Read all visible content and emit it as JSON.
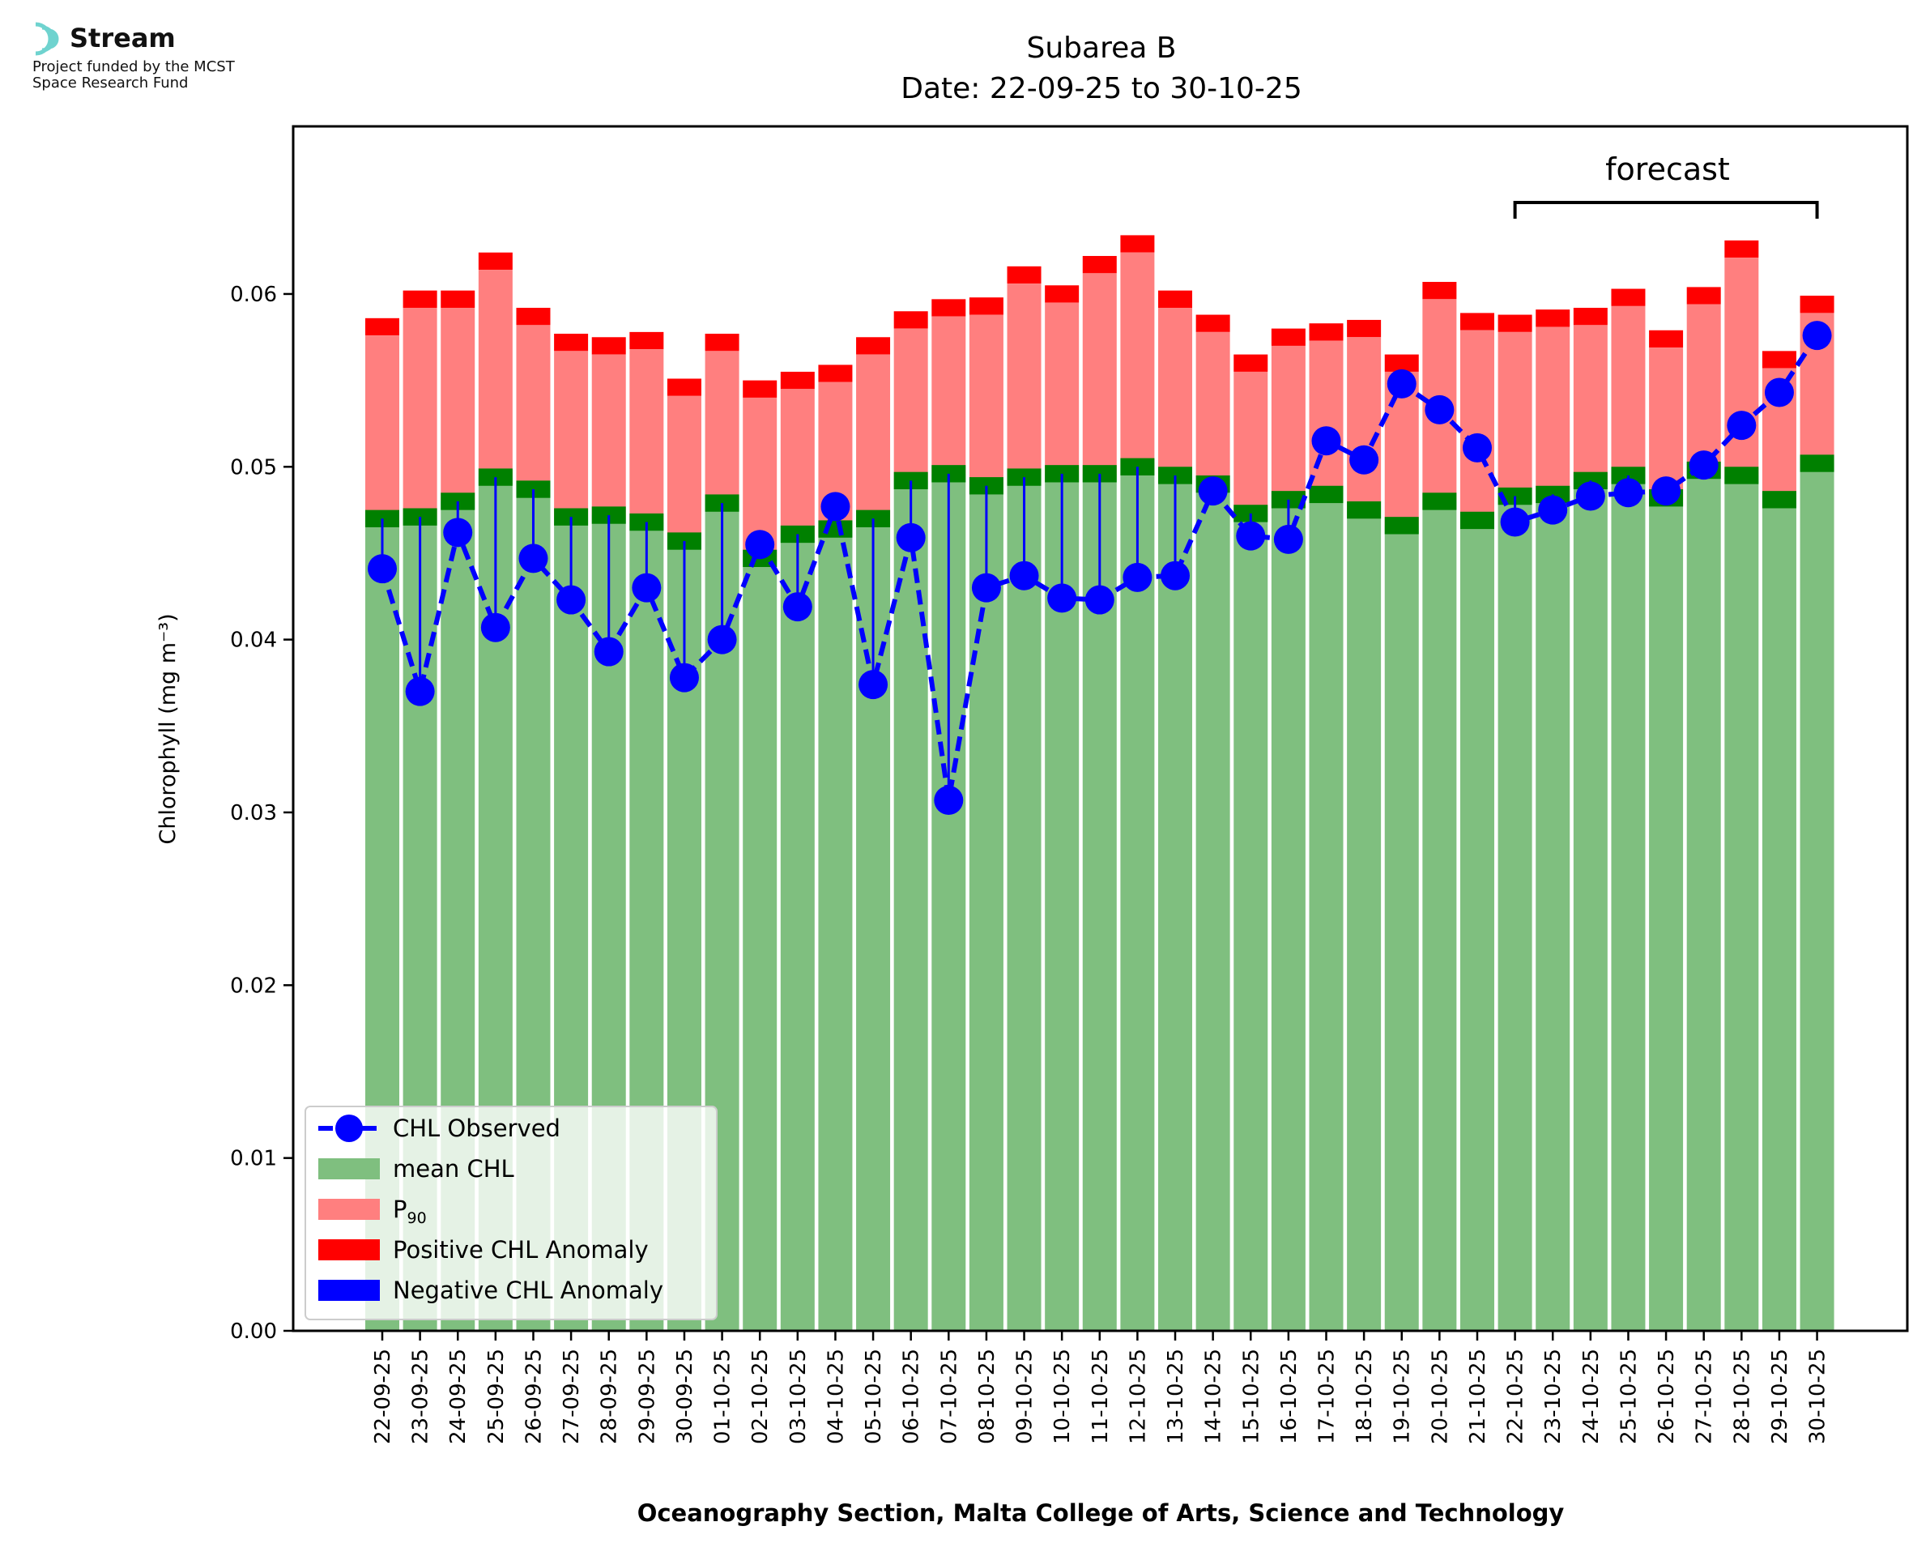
{
  "logo": {
    "name": "Stream",
    "line1": "Project funded by the MCST",
    "line2": "Space Research Fund",
    "color": "#6fd3cf"
  },
  "chart_data": {
    "type": "bar",
    "title": "Subarea B",
    "subtitle": "Date: 22-09-25 to 30-10-25",
    "xlabel": "Oceanography Section, Malta College of Arts, Science and Technology",
    "ylabel": "Chlorophyll (mg m⁻³)",
    "ylim": [
      0,
      0.0697
    ],
    "yticks": [
      0.0,
      0.01,
      0.02,
      0.03,
      0.04,
      0.05,
      0.06
    ],
    "ytick_labels": [
      "0.00",
      "0.01",
      "0.02",
      "0.03",
      "0.04",
      "0.05",
      "0.06"
    ],
    "grid": false,
    "legend_position": "lower-left",
    "categories": [
      "22-09-25",
      "23-09-25",
      "24-09-25",
      "25-09-25",
      "26-09-25",
      "27-09-25",
      "28-09-25",
      "29-09-25",
      "30-09-25",
      "01-10-25",
      "02-10-25",
      "03-10-25",
      "04-10-25",
      "05-10-25",
      "06-10-25",
      "07-10-25",
      "08-10-25",
      "09-10-25",
      "10-10-25",
      "11-10-25",
      "12-10-25",
      "13-10-25",
      "14-10-25",
      "15-10-25",
      "16-10-25",
      "17-10-25",
      "18-10-25",
      "19-10-25",
      "20-10-25",
      "21-10-25",
      "22-10-25",
      "23-10-25",
      "24-10-25",
      "25-10-25",
      "26-10-25",
      "27-10-25",
      "28-10-25",
      "29-10-25",
      "30-10-25"
    ],
    "series": [
      {
        "name": "mean CHL",
        "color": "#7fbf7f",
        "band_color": "#008000",
        "values": [
          0.047,
          0.0471,
          0.048,
          0.0494,
          0.0487,
          0.0471,
          0.0472,
          0.0468,
          0.0457,
          0.0479,
          0.0447,
          0.0461,
          0.0464,
          0.047,
          0.0492,
          0.0496,
          0.0489,
          0.0494,
          0.0496,
          0.0496,
          0.05,
          0.0495,
          0.049,
          0.0473,
          0.0481,
          0.0484,
          0.0475,
          0.0466,
          0.048,
          0.0469,
          0.0483,
          0.0484,
          0.0492,
          0.0495,
          0.0482,
          0.0498,
          0.0495,
          0.0481,
          0.0502
        ]
      },
      {
        "name": "P₉₀",
        "color": "#ff7f7f",
        "band_color": "#ff0000",
        "values": [
          0.0581,
          0.0597,
          0.0597,
          0.0619,
          0.0587,
          0.0572,
          0.057,
          0.0573,
          0.0546,
          0.0572,
          0.0545,
          0.055,
          0.0554,
          0.057,
          0.0585,
          0.0592,
          0.0593,
          0.0611,
          0.06,
          0.0617,
          0.0629,
          0.0597,
          0.0583,
          0.056,
          0.0575,
          0.0578,
          0.058,
          0.056,
          0.0602,
          0.0584,
          0.0583,
          0.0586,
          0.0587,
          0.0598,
          0.0574,
          0.0599,
          0.0626,
          0.0562,
          0.0594
        ]
      },
      {
        "name": "CHL Observed",
        "color": "#0000ff",
        "line_style": "dashed",
        "values": [
          0.0441,
          0.037,
          0.0462,
          0.0407,
          0.0447,
          0.0423,
          0.0393,
          0.043,
          0.0378,
          0.04,
          0.0455,
          0.0419,
          0.0477,
          0.0374,
          0.0459,
          0.0307,
          0.043,
          0.0437,
          0.0424,
          0.0423,
          0.0436,
          0.0437,
          0.0486,
          0.046,
          0.0458,
          0.0515,
          0.0504,
          0.0548,
          0.0533,
          0.0511,
          0.0468,
          0.0475,
          0.0483,
          0.0485,
          0.0486,
          0.0501,
          0.0524,
          0.0543,
          0.0576
        ]
      }
    ],
    "legend": [
      {
        "label": "CHL Observed",
        "kind": "line-marker",
        "color": "#0000ff"
      },
      {
        "label": "mean CHL",
        "kind": "patch",
        "color": "#7fbf7f"
      },
      {
        "label": "P",
        "sub": "90",
        "kind": "patch",
        "color": "#ff7f7f"
      },
      {
        "label": "Positive CHL Anomaly",
        "kind": "patch",
        "color": "#ff0000"
      },
      {
        "label": "Negative CHL Anomaly",
        "kind": "patch",
        "color": "#0000ff"
      }
    ],
    "annotation": {
      "text": "forecast",
      "from": "22-10-25",
      "to": "30-10-25"
    }
  }
}
